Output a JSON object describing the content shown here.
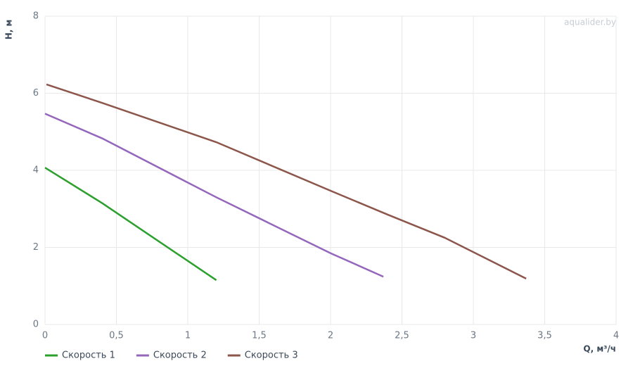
{
  "chart_data": {
    "type": "line",
    "watermark": "aqualider.by",
    "x_label": "Q, м³/ч",
    "y_label": "H, м",
    "xlim": [
      0,
      4
    ],
    "ylim": [
      0,
      8
    ],
    "xticks": [
      0,
      {
        "value": 0.5,
        "label": "0,5"
      },
      1,
      {
        "value": 1.5,
        "label": "1,5"
      },
      2,
      {
        "value": 2.5,
        "label": "2,5"
      },
      3,
      {
        "value": 3.5,
        "label": "3,5"
      },
      4
    ],
    "yticks": [
      0,
      2,
      4,
      6,
      8
    ],
    "grid": true,
    "legend": "bottom-left",
    "series": [
      {
        "name": "Скорость 1",
        "color": "#2ca02c",
        "x": [
          0,
          0.4,
          1.2
        ],
        "values": [
          4.07,
          3.15,
          1.15
        ]
      },
      {
        "name": "Скорость 2",
        "color": "#9467bd",
        "x": [
          0,
          0.4,
          1.2,
          2,
          2.37
        ],
        "values": [
          5.47,
          4.83,
          3.3,
          1.85,
          1.24
        ]
      },
      {
        "name": "Скорость 3",
        "color": "#8c564b",
        "x": [
          0.01,
          0.4,
          1.2,
          2,
          2.4,
          2.8,
          3.37
        ],
        "values": [
          6.23,
          5.75,
          4.73,
          3.47,
          2.85,
          2.25,
          1.19
        ]
      }
    ]
  }
}
